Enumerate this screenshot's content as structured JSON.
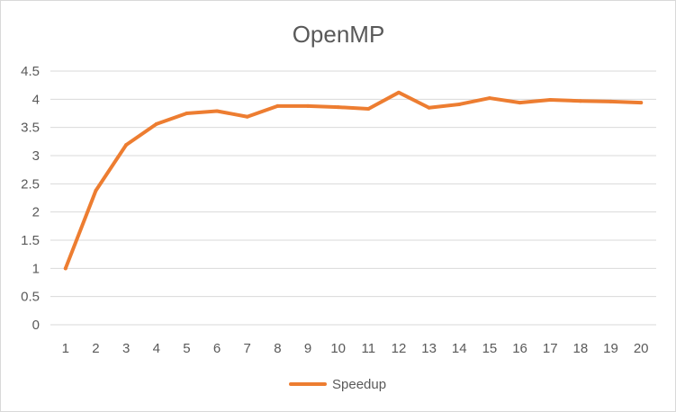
{
  "chart_data": {
    "type": "line",
    "title": "OpenMP",
    "xlabel": "",
    "ylabel": "",
    "categories": [
      1,
      2,
      3,
      4,
      5,
      6,
      7,
      8,
      9,
      10,
      11,
      12,
      13,
      14,
      15,
      16,
      17,
      18,
      19,
      20
    ],
    "series": [
      {
        "name": "Speedup",
        "color": "#ed7d31",
        "values": [
          1.0,
          2.38,
          3.19,
          3.56,
          3.75,
          3.79,
          3.69,
          3.88,
          3.88,
          3.86,
          3.83,
          4.12,
          3.85,
          3.91,
          4.02,
          3.94,
          3.99,
          3.97,
          3.96,
          3.94
        ]
      }
    ],
    "ylim": [
      0,
      4.5
    ],
    "yticks": [
      "0",
      "0.5",
      "1",
      "1.5",
      "2",
      "2.5",
      "3",
      "3.5",
      "4",
      "4.5"
    ],
    "grid": true,
    "legend_position": "bottom",
    "gridline_color": "#d9d9d9",
    "text_color": "#595959"
  }
}
